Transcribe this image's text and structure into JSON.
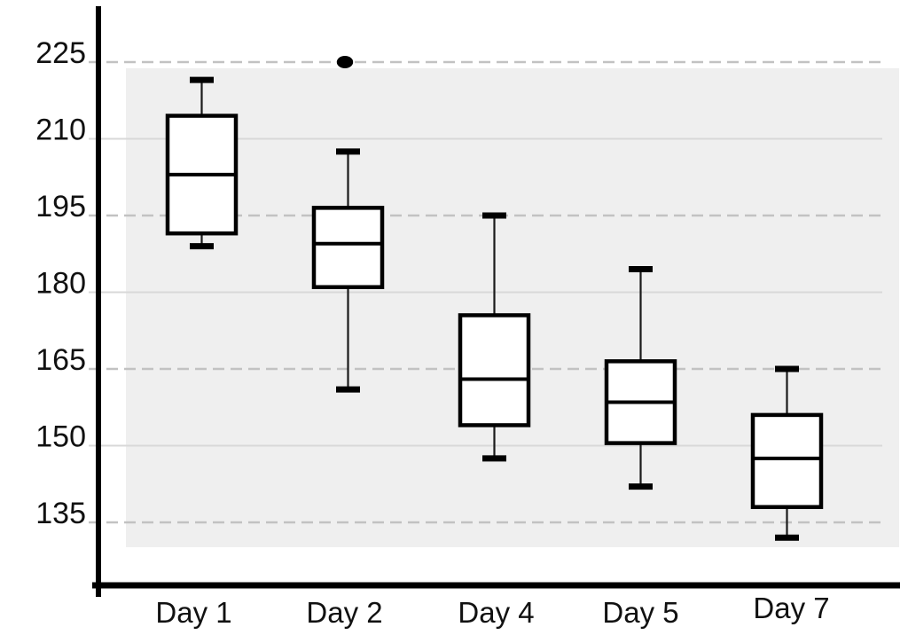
{
  "chart_data": {
    "type": "box",
    "title": "",
    "categories": [
      "Day 1",
      "Day 2",
      "Day 4",
      "Day 5",
      "Day 7"
    ],
    "series": [
      {
        "label": "Day 1",
        "min": 189,
        "q1": 191.5,
        "median": 203,
        "q3": 214.5,
        "max": 221.5,
        "outliers": []
      },
      {
        "label": "Day 2",
        "min": 161,
        "q1": 181,
        "median": 189.5,
        "q3": 196.5,
        "max": 207.5,
        "outliers": [
          225
        ]
      },
      {
        "label": "Day 4",
        "min": 147.5,
        "q1": 154,
        "median": 163,
        "q3": 175.5,
        "max": 195,
        "outliers": []
      },
      {
        "label": "Day 5",
        "min": 142,
        "q1": 150.5,
        "median": 158.5,
        "q3": 166.5,
        "max": 184.5,
        "outliers": []
      },
      {
        "label": "Day 7",
        "min": 132,
        "q1": 138,
        "median": 147.5,
        "q3": 156,
        "max": 165,
        "outliers": []
      }
    ],
    "y_axis": {
      "ticks": [
        225,
        210,
        195,
        180,
        165,
        150,
        135
      ],
      "dashed_ticks": [
        225,
        195,
        165,
        135
      ],
      "solid_ticks": [
        210,
        180,
        150
      ],
      "ylim": [
        123,
        236
      ]
    },
    "x_axis": {
      "labels": [
        "Day 1",
        "Day 2",
        "Day 4",
        "Day 5",
        "Day 7"
      ]
    },
    "legend": null,
    "grid": "horizontal",
    "colors": {
      "box_fill": "#ffffff",
      "box_stroke": "#000000",
      "whisker": "#1a1a1a",
      "band": "#efefef",
      "grid_dashed": "#c2c2c2",
      "grid_solid": "#d8d8d8",
      "axis": "#000000",
      "text": "#111111",
      "outlier": "#000000"
    }
  }
}
